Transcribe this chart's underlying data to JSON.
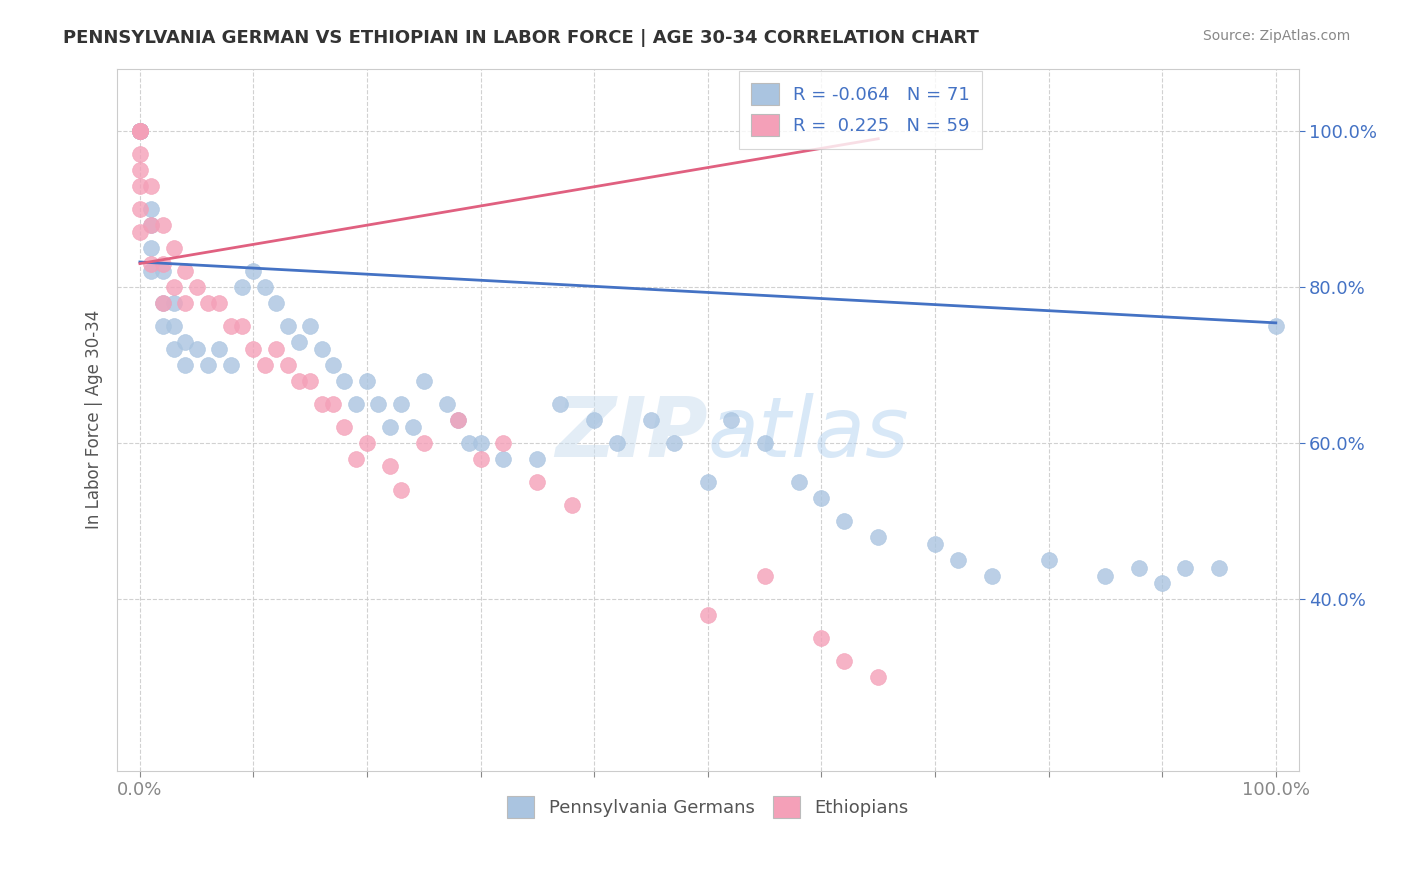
{
  "title": "PENNSYLVANIA GERMAN VS ETHIOPIAN IN LABOR FORCE | AGE 30-34 CORRELATION CHART",
  "source_text": "Source: ZipAtlas.com",
  "ylabel": "In Labor Force | Age 30-34",
  "xlim": [
    -0.02,
    1.02
  ],
  "ylim": [
    0.18,
    1.08
  ],
  "x_tick_positions": [
    0.0,
    0.1,
    0.2,
    0.3,
    0.4,
    0.5,
    0.6,
    0.7,
    0.8,
    0.9,
    1.0
  ],
  "x_tick_labels": [
    "0.0%",
    "",
    "",
    "",
    "",
    "",
    "",
    "",
    "",
    "",
    "100.0%"
  ],
  "y_tick_positions": [
    0.4,
    0.6,
    0.8,
    1.0
  ],
  "y_tick_labels": [
    "40.0%",
    "60.0%",
    "80.0%",
    "100.0%"
  ],
  "blue_color": "#aac4e0",
  "pink_color": "#f4a0b8",
  "blue_line_color": "#4472c4",
  "pink_line_color": "#e06080",
  "legend_R_blue": "-0.064",
  "legend_N_blue": "71",
  "legend_R_pink": "0.225",
  "legend_N_pink": "59",
  "legend_label_blue": "Pennsylvania Germans",
  "legend_label_pink": "Ethiopians",
  "watermark": "ZIPatlas",
  "blue_x": [
    0.0,
    0.0,
    0.0,
    0.0,
    0.0,
    0.0,
    0.0,
    0.0,
    0.01,
    0.01,
    0.01,
    0.01,
    0.02,
    0.02,
    0.02,
    0.03,
    0.03,
    0.03,
    0.04,
    0.04,
    0.05,
    0.06,
    0.07,
    0.08,
    0.09,
    0.1,
    0.11,
    0.12,
    0.13,
    0.14,
    0.15,
    0.16,
    0.17,
    0.18,
    0.19,
    0.2,
    0.21,
    0.22,
    0.23,
    0.24,
    0.25,
    0.27,
    0.28,
    0.29,
    0.3,
    0.32,
    0.35,
    0.37,
    0.4,
    0.42,
    0.45,
    0.47,
    0.5,
    0.52,
    0.55,
    0.58,
    0.6,
    0.62,
    0.65,
    0.7,
    0.72,
    0.75,
    0.8,
    0.85,
    0.88,
    0.9,
    0.92,
    0.95,
    1.0
  ],
  "blue_y": [
    1.0,
    1.0,
    1.0,
    1.0,
    1.0,
    1.0,
    1.0,
    1.0,
    0.9,
    0.88,
    0.85,
    0.82,
    0.82,
    0.78,
    0.75,
    0.78,
    0.75,
    0.72,
    0.73,
    0.7,
    0.72,
    0.7,
    0.72,
    0.7,
    0.8,
    0.82,
    0.8,
    0.78,
    0.75,
    0.73,
    0.75,
    0.72,
    0.7,
    0.68,
    0.65,
    0.68,
    0.65,
    0.62,
    0.65,
    0.62,
    0.68,
    0.65,
    0.63,
    0.6,
    0.6,
    0.58,
    0.58,
    0.65,
    0.63,
    0.6,
    0.63,
    0.6,
    0.55,
    0.63,
    0.6,
    0.55,
    0.53,
    0.5,
    0.48,
    0.47,
    0.45,
    0.43,
    0.45,
    0.43,
    0.44,
    0.42,
    0.44,
    0.44,
    0.75
  ],
  "pink_x": [
    0.0,
    0.0,
    0.0,
    0.0,
    0.0,
    0.0,
    0.0,
    0.0,
    0.0,
    0.0,
    0.01,
    0.01,
    0.01,
    0.02,
    0.02,
    0.02,
    0.03,
    0.03,
    0.04,
    0.04,
    0.05,
    0.06,
    0.07,
    0.08,
    0.09,
    0.1,
    0.11,
    0.12,
    0.13,
    0.14,
    0.15,
    0.16,
    0.17,
    0.18,
    0.19,
    0.2,
    0.22,
    0.23,
    0.25,
    0.28,
    0.3,
    0.32,
    0.35,
    0.38,
    0.5,
    0.55,
    0.6,
    0.62,
    0.65
  ],
  "pink_y": [
    1.0,
    1.0,
    1.0,
    1.0,
    1.0,
    0.97,
    0.95,
    0.93,
    0.9,
    0.87,
    0.93,
    0.88,
    0.83,
    0.88,
    0.83,
    0.78,
    0.85,
    0.8,
    0.82,
    0.78,
    0.8,
    0.78,
    0.78,
    0.75,
    0.75,
    0.72,
    0.7,
    0.72,
    0.7,
    0.68,
    0.68,
    0.65,
    0.65,
    0.62,
    0.58,
    0.6,
    0.57,
    0.54,
    0.6,
    0.63,
    0.58,
    0.6,
    0.55,
    0.52,
    0.38,
    0.43,
    0.35,
    0.32,
    0.3
  ],
  "blue_trend_x": [
    0.0,
    1.0
  ],
  "blue_trend_y": [
    0.832,
    0.754
  ],
  "pink_trend_x": [
    0.0,
    0.65
  ],
  "pink_trend_y": [
    0.83,
    0.99
  ],
  "background_color": "#ffffff",
  "grid_color": "#cccccc"
}
